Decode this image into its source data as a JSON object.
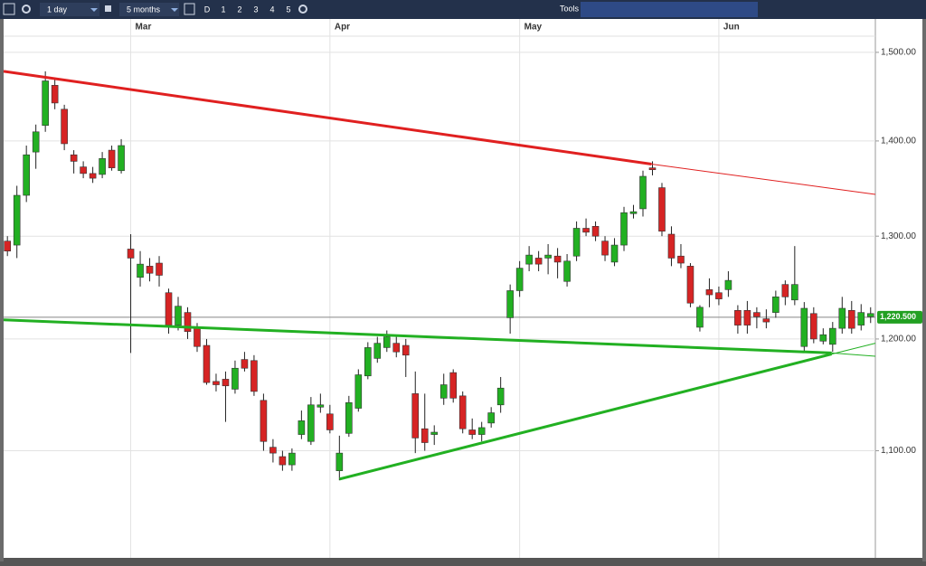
{
  "toolbar": {
    "interval": "1 day",
    "range": "5 months",
    "buttons": [
      "D",
      "1",
      "2",
      "3",
      "4",
      "5"
    ],
    "tools": "Tools"
  },
  "chart_data": {
    "type": "candlestick",
    "log_scale": true,
    "grid": true,
    "up_color": "#22b022",
    "down_color": "#d62424",
    "open": [
      1295,
      1291,
      1342,
      1388,
      1417,
      1462,
      1435,
      1385,
      1372,
      1365,
      1364,
      1390,
      1368,
      1287,
      1259,
      1270,
      1273,
      1244,
      1213,
      1225,
      1210,
      1194,
      1161,
      1163,
      1154,
      1181,
      1180,
      1144,
      1103,
      1095,
      1088,
      1114,
      1108,
      1138,
      1132,
      1083,
      1115,
      1137,
      1166,
      1182,
      1192,
      1196,
      1194,
      1150,
      1119,
      1114,
      1146,
      1169,
      1148,
      1118,
      1114,
      1124,
      1140,
      1220,
      1246,
      1272,
      1278,
      1278,
      1280,
      1255,
      1280,
      1308,
      1310,
      1295,
      1274,
      1291,
      1323,
      1328,
      1371,
      1350,
      1302,
      1280,
      1270,
      1211,
      1247,
      1244,
      1247,
      1227,
      1227,
      1225,
      1219,
      1225,
      1252,
      1237,
      1193,
      1224,
      1198,
      1195,
      1210,
      1227,
      1213,
      1221
    ],
    "high": [
      1300,
      1352,
      1395,
      1418,
      1478,
      1470,
      1440,
      1390,
      1378,
      1372,
      1388,
      1395,
      1402,
      1302,
      1285,
      1278,
      1280,
      1248,
      1240,
      1230,
      1215,
      1200,
      1168,
      1170,
      1180,
      1188,
      1185,
      1150,
      1110,
      1100,
      1102,
      1135,
      1147,
      1150,
      1140,
      1113,
      1148,
      1172,
      1197,
      1202,
      1208,
      1202,
      1200,
      1170,
      1150,
      1122,
      1168,
      1172,
      1152,
      1128,
      1125,
      1138,
      1165,
      1252,
      1275,
      1290,
      1285,
      1292,
      1288,
      1282,
      1315,
      1318,
      1315,
      1300,
      1298,
      1330,
      1332,
      1368,
      1378,
      1355,
      1310,
      1292,
      1273,
      1232,
      1258,
      1250,
      1265,
      1232,
      1236,
      1230,
      1228,
      1246,
      1256,
      1290,
      1235,
      1230,
      1210,
      1216,
      1240,
      1236,
      1233,
      1230
    ],
    "low": [
      1280,
      1278,
      1335,
      1370,
      1410,
      1435,
      1390,
      1365,
      1360,
      1355,
      1360,
      1368,
      1365,
      1187,
      1250,
      1255,
      1250,
      1205,
      1208,
      1200,
      1188,
      1158,
      1152,
      1125,
      1150,
      1170,
      1148,
      1100,
      1090,
      1083,
      1083,
      1110,
      1105,
      1133,
      1115,
      1075,
      1112,
      1134,
      1163,
      1178,
      1188,
      1183,
      1165,
      1098,
      1100,
      1105,
      1140,
      1142,
      1115,
      1110,
      1108,
      1120,
      1133,
      1205,
      1240,
      1265,
      1265,
      1262,
      1258,
      1250,
      1275,
      1300,
      1295,
      1275,
      1270,
      1285,
      1318,
      1320,
      1363,
      1300,
      1270,
      1268,
      1230,
      1207,
      1230,
      1232,
      1240,
      1205,
      1205,
      1210,
      1210,
      1220,
      1232,
      1232,
      1188,
      1196,
      1195,
      1188,
      1205,
      1205,
      1208,
      1215
    ],
    "close": [
      1285,
      1342,
      1385,
      1410,
      1467,
      1442,
      1397,
      1378,
      1365,
      1360,
      1381,
      1371,
      1395,
      1278,
      1272,
      1263,
      1261,
      1213,
      1231,
      1207,
      1193,
      1160,
      1158,
      1157,
      1173,
      1173,
      1152,
      1108,
      1098,
      1088,
      1098,
      1126,
      1140,
      1140,
      1118,
      1098,
      1142,
      1167,
      1192,
      1196,
      1202,
      1188,
      1185,
      1111,
      1107,
      1116,
      1158,
      1146,
      1119,
      1114,
      1120,
      1133,
      1155,
      1246,
      1268,
      1281,
      1272,
      1281,
      1274,
      1275,
      1308,
      1304,
      1300,
      1281,
      1291,
      1324,
      1325,
      1362,
      1369,
      1305,
      1278,
      1273,
      1234,
      1230,
      1242,
      1238,
      1256,
      1213,
      1213,
      1221,
      1216,
      1240,
      1240,
      1252,
      1229,
      1200,
      1204,
      1210,
      1229,
      1210,
      1225,
      1224
    ],
    "xlim": [
      -0.4,
      91.5
    ],
    "xticks": [
      {
        "value": 13,
        "label": "Mar"
      },
      {
        "value": 34,
        "label": "Apr"
      },
      {
        "value": 54,
        "label": "May"
      },
      {
        "value": 75,
        "label": "Jun"
      }
    ],
    "ylim": [
      1012,
      1519
    ],
    "yticks": [
      {
        "value": 1100,
        "label": "1,100.00"
      },
      {
        "value": 1200,
        "label": "1,200.00"
      },
      {
        "value": 1300,
        "label": "1,300.00"
      },
      {
        "value": 1400,
        "label": "1,400.00"
      },
      {
        "value": 1500,
        "label": "1,500.00"
      }
    ],
    "last_price": 1220.5,
    "last_price_label": "1,220.500",
    "trendlines": [
      {
        "color": "#e02020",
        "width": 3,
        "x": [
          -0.4,
          67.9
        ],
        "y": [
          1478,
          1375
        ]
      },
      {
        "color": "#e02020",
        "width": 1,
        "x": [
          67.9,
          91.5
        ],
        "y": [
          1375,
          1343
        ]
      },
      {
        "color": "#22b022",
        "width": 3,
        "x": [
          -0.4,
          86.9
        ],
        "y": [
          1218,
          1187
        ]
      },
      {
        "color": "#22b022",
        "width": 1,
        "x": [
          86.9,
          91.5
        ],
        "y": [
          1187,
          1184
        ]
      },
      {
        "color": "#22b022",
        "width": 3,
        "x": [
          35,
          86.9
        ],
        "y": [
          1076,
          1186
        ]
      },
      {
        "color": "#22b022",
        "width": 1,
        "x": [
          86.9,
          91.5
        ],
        "y": [
          1186,
          1196
        ]
      }
    ]
  }
}
